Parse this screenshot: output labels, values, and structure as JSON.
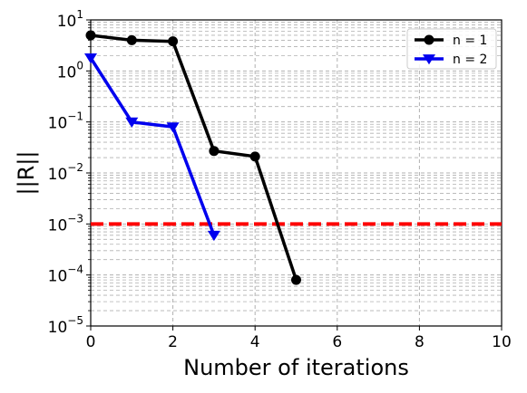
{
  "chart_data": {
    "type": "line",
    "xlabel": "Number of iterations",
    "ylabel": "||R||",
    "xscale": "linear",
    "yscale": "log",
    "xlim": [
      0,
      10
    ],
    "ylim": [
      1e-05,
      10
    ],
    "xticks": [
      0,
      2,
      4,
      6,
      8,
      10
    ],
    "xtick_labels": [
      "0",
      "2",
      "4",
      "6",
      "8",
      "10"
    ],
    "yticks": [
      1e-05,
      0.0001,
      0.001,
      0.01,
      0.1,
      1,
      10
    ],
    "ytick_labels": [
      {
        "base": "10",
        "exp": "−5"
      },
      {
        "base": "10",
        "exp": "−4"
      },
      {
        "base": "10",
        "exp": "−3"
      },
      {
        "base": "10",
        "exp": "−2"
      },
      {
        "base": "10",
        "exp": "−1"
      },
      {
        "base": "10",
        "exp": "0"
      },
      {
        "base": "10",
        "exp": "1"
      }
    ],
    "grid": true,
    "legend_position": "top-right",
    "series": [
      {
        "name": "n = 1",
        "color": "#000000",
        "marker": "circle",
        "x": [
          0,
          1,
          2,
          3,
          4,
          5
        ],
        "y": [
          5.0,
          4.0,
          3.8,
          0.027,
          0.021,
          8e-05
        ]
      },
      {
        "name": "n = 2",
        "color": "#0000ee",
        "marker": "triangle-down",
        "x": [
          0,
          1,
          2,
          3
        ],
        "y": [
          1.8,
          0.1,
          0.08,
          0.0006
        ]
      }
    ],
    "reference_line": {
      "y": 0.001,
      "color": "#ff0000",
      "style": "dashed"
    }
  }
}
